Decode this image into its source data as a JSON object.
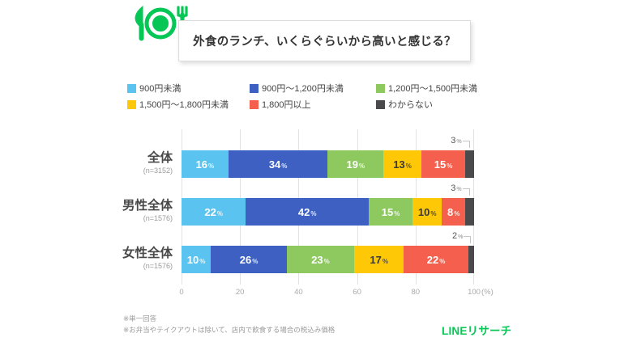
{
  "title": "外食のランチ、いくらぐらいから高いと感じる？",
  "logo_text": "LINEリサーチ",
  "footnotes": [
    "※単一回答",
    "※お弁当やテイクアウトは除いて、店内で飲食する場合の税込み価格"
  ],
  "colors": {
    "brand_green": "#06C755",
    "grid": "#e2e2e2"
  },
  "chart_data": {
    "type": "bar",
    "orientation": "horizontal-stacked",
    "title": "外食のランチ、いくらぐらいから高いと感じる？",
    "categories": [
      "全体",
      "男性全体",
      "女性全体"
    ],
    "category_counts": [
      "(n=3152)",
      "(n=1576)",
      "(n=1576)"
    ],
    "series": [
      {
        "name": "900円未満",
        "color": "#5BC3F0",
        "label_color": "#ffffff",
        "values": [
          16,
          22,
          10
        ]
      },
      {
        "name": "900円〜1,200円未満",
        "color": "#3D60C2",
        "label_color": "#ffffff",
        "values": [
          34,
          42,
          26
        ]
      },
      {
        "name": "1,200円〜1,500円未満",
        "color": "#8EC95F",
        "label_color": "#ffffff",
        "values": [
          19,
          15,
          23
        ]
      },
      {
        "name": "1,500円〜1,800円未満",
        "color": "#FFC806",
        "label_color": "#3a3a3a",
        "values": [
          13,
          10,
          17
        ]
      },
      {
        "name": "1,800円以上",
        "color": "#F4604D",
        "label_color": "#ffffff",
        "values": [
          15,
          8,
          22
        ]
      },
      {
        "name": "わからない",
        "color": "#4A4A4C",
        "label_color": null,
        "values": [
          3,
          3,
          2
        ]
      }
    ],
    "value_suffix": "%",
    "x_ticks": [
      0,
      20,
      40,
      60,
      80,
      100
    ],
    "x_unit": "(%)",
    "xlim": [
      0,
      100
    ],
    "legend_position": "top",
    "grid": true
  }
}
